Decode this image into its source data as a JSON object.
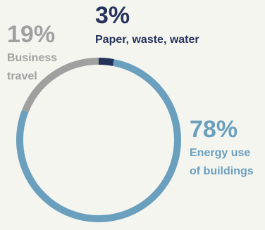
{
  "chart_data": {
    "type": "pie",
    "style": "donut",
    "slices": [
      {
        "label": "Paper, waste, water",
        "value": 3,
        "display": "3%",
        "color": "#25325a"
      },
      {
        "label": "Energy use of buildings",
        "value": 78,
        "display": "78%",
        "color": "#6a9fbd"
      },
      {
        "label": "Business travel",
        "value": 19,
        "display": "19%",
        "color": "#a0a19f"
      }
    ],
    "label_lines": {
      "travel": [
        "Business",
        "travel"
      ],
      "paper": [
        "Paper, waste, water"
      ],
      "energy": [
        "Energy use",
        "of buildings"
      ]
    }
  }
}
